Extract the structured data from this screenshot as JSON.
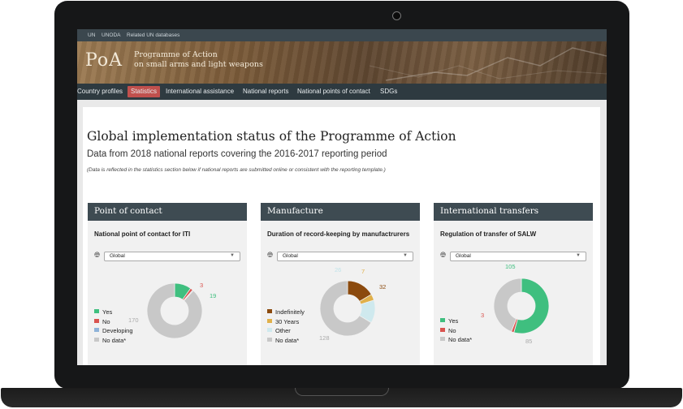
{
  "topbar": {
    "links": [
      "UN",
      "UNODA",
      "Related UN databases"
    ]
  },
  "banner": {
    "logo": "PoA",
    "title_line1": "Programme of Action",
    "title_line2": "on small arms and light weapons"
  },
  "nav": {
    "items": [
      "Country profiles",
      "Statistics",
      "International assistance",
      "National reports",
      "National points of contact",
      "SDGs"
    ],
    "active": "Statistics"
  },
  "page": {
    "title": "Global implementation status of the Programme of Action",
    "subtitle": "Data from 2018 national reports covering the 2016-2017 reporting period",
    "note": "(Data is reflected in the statistics section below if national reports are submitted online or consistent with the reporting template.)"
  },
  "cards": [
    {
      "title": "Point of contact",
      "subtitle": "National point of contact for ITI",
      "select": "Global",
      "legend": [
        {
          "label": "Yes",
          "color": "#3fbf7f"
        },
        {
          "label": "No",
          "color": "#d9534f"
        },
        {
          "label": "Developing",
          "color": "#8fb3d9"
        },
        {
          "label": "No data*",
          "color": "#c8c8c8"
        }
      ],
      "chart_data": {
        "type": "pie",
        "categories": [
          "Yes",
          "No",
          "Developing",
          "No data*"
        ],
        "values": [
          19,
          3,
          1,
          170
        ],
        "colors": [
          "#3fbf7f",
          "#d9534f",
          "#8fb3d9",
          "#c8c8c8"
        ],
        "data_labels": [
          "19",
          "3",
          "1",
          "170"
        ]
      }
    },
    {
      "title": "Manufacture",
      "subtitle": "Duration of record-keeping by manufactrurers",
      "select": "Global",
      "legend": [
        {
          "label": "Indefinitely",
          "color": "#8b4a0e"
        },
        {
          "label": "30 Years",
          "color": "#e0b04a"
        },
        {
          "label": "Other",
          "color": "#cfe9ee"
        },
        {
          "label": "No data*",
          "color": "#c8c8c8"
        }
      ],
      "chart_data": {
        "type": "pie",
        "categories": [
          "Indefinitely",
          "30 Years",
          "Other",
          "No data*"
        ],
        "values": [
          32,
          7,
          26,
          128
        ],
        "colors": [
          "#8b4a0e",
          "#e0b04a",
          "#cfe9ee",
          "#c8c8c8"
        ],
        "data_labels": [
          "32",
          "7",
          "26",
          "128"
        ]
      }
    },
    {
      "title": "International transfers",
      "subtitle": "Regulation of transfer of SALW",
      "select": "Global",
      "legend": [
        {
          "label": "Yes",
          "color": "#3fbf7f"
        },
        {
          "label": "No",
          "color": "#d9534f"
        },
        {
          "label": "No data*",
          "color": "#c8c8c8"
        }
      ],
      "chart_data": {
        "type": "pie",
        "categories": [
          "Yes",
          "No",
          "No data*"
        ],
        "values": [
          105,
          3,
          85
        ],
        "colors": [
          "#3fbf7f",
          "#d9534f",
          "#c8c8c8"
        ],
        "data_labels": [
          "105",
          "3",
          "85"
        ]
      }
    }
  ]
}
